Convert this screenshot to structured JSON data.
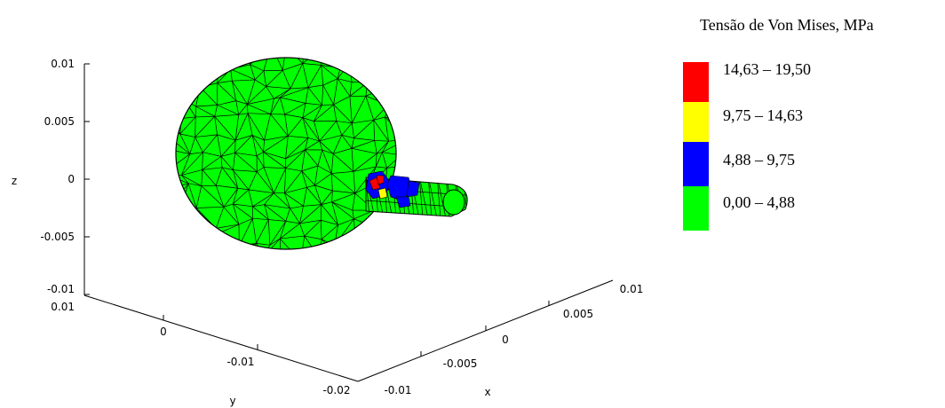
{
  "axes": {
    "z_label": "z",
    "y_label": "y",
    "x_label": "x",
    "z_ticks": [
      "0.01",
      "0.005",
      "0",
      "-0.005",
      "-0.01"
    ],
    "y_ticks": [
      "0.01",
      "0",
      "-0.01",
      "-0.02"
    ],
    "x_ticks": [
      "-0.01",
      "-0.005",
      "0",
      "0.005",
      "0.01"
    ]
  },
  "legend": {
    "title": "Tensão de Von Mises, MPa",
    "items": [
      {
        "label": "14,63 – 19,50",
        "color": "#ff0000"
      },
      {
        "label": "9,75 – 14,63",
        "color": "#ffff00"
      },
      {
        "label": "4,88 – 9,75",
        "color": "#0000ff"
      },
      {
        "label": "0,00 – 4,88",
        "color": "#00ff00"
      }
    ]
  },
  "mesh": {
    "fill_color": "#00ff00",
    "edge_color": "#000000"
  }
}
